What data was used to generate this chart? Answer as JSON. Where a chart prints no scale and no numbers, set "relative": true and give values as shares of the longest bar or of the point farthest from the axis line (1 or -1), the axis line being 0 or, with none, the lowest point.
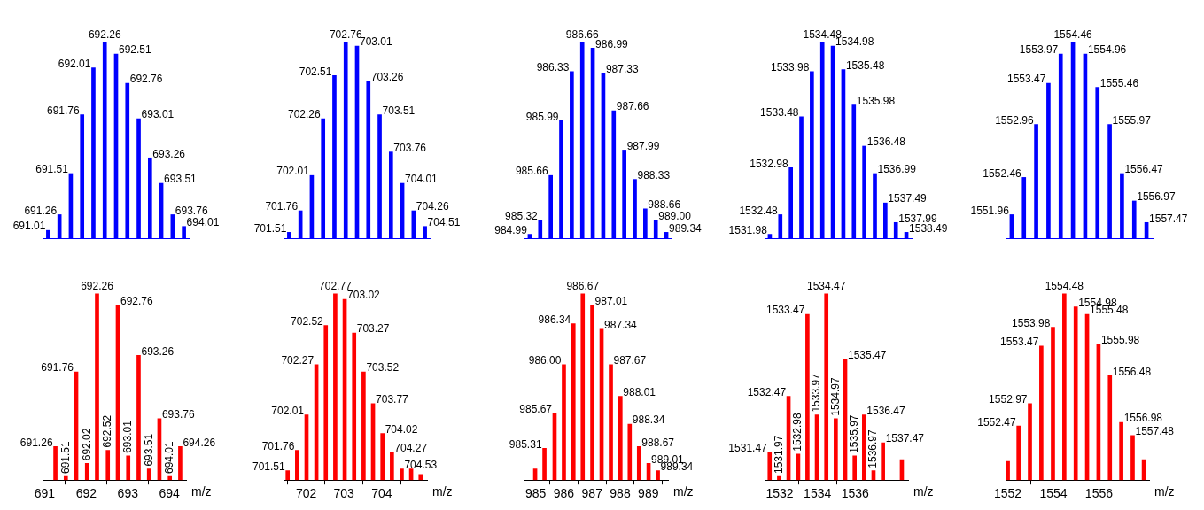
{
  "chart_data": [
    {
      "type": "bar",
      "relative": true,
      "color": "#0000ff",
      "tick_labels": false,
      "categories": [
        null,
        null,
        null,
        null,
        null,
        null,
        null,
        null,
        null,
        null,
        null,
        null,
        null
      ],
      "values": [
        0.04,
        0.12,
        0.33,
        0.63,
        0.87,
        1,
        0.94,
        0.79,
        0.61,
        0.41,
        0.28,
        0.12,
        0.06
      ],
      "annotations": [
        "691.01",
        "691.26",
        "691.51",
        "691.76",
        "692.01",
        "692.26",
        "692.51",
        "692.76",
        "693.01",
        "693.26",
        "693.51",
        "693.76",
        "694.01"
      ]
    },
    {
      "type": "bar",
      "relative": true,
      "color": "#0000ff",
      "tick_labels": false,
      "categories": [
        null,
        null,
        null,
        null,
        null,
        null,
        null,
        null,
        null,
        null,
        null,
        null,
        null
      ],
      "values": [
        0.03,
        0.14,
        0.32,
        0.61,
        0.83,
        1,
        0.98,
        0.8,
        0.63,
        0.44,
        0.28,
        0.14,
        0.06
      ],
      "annotations": [
        "701.51",
        "701.76",
        "702.01",
        "702.26",
        "702.51",
        "702.76",
        "703.01",
        "703.26",
        "703.51",
        "703.76",
        "704.01",
        "704.26",
        "704.51"
      ]
    },
    {
      "type": "bar",
      "relative": true,
      "color": "#0000ff",
      "tick_labels": false,
      "categories": [
        null,
        null,
        null,
        null,
        null,
        null,
        null,
        null,
        null,
        null,
        null,
        null,
        null,
        null
      ],
      "values": [
        0.02,
        0.09,
        0.32,
        0.6,
        0.85,
        1,
        0.97,
        0.84,
        0.65,
        0.45,
        0.3,
        0.15,
        0.09,
        0.03
      ],
      "annotations": [
        "984.99",
        "985.32",
        "985.66",
        "985.99",
        "986.33",
        "986.66",
        "986.99",
        "987.33",
        "987.66",
        "987.99",
        "988.33",
        "988.66",
        "989.00",
        "989.34"
      ]
    },
    {
      "type": "bar",
      "relative": true,
      "color": "#0000ff",
      "tick_labels": false,
      "categories": [
        null,
        null,
        null,
        null,
        null,
        null,
        null,
        null,
        null,
        null,
        null,
        null,
        null,
        null
      ],
      "values": [
        0.02,
        0.12,
        0.36,
        0.62,
        0.85,
        1,
        0.98,
        0.86,
        0.68,
        0.47,
        0.33,
        0.18,
        0.08,
        0.03
      ],
      "annotations": [
        "1531.98",
        "1532.48",
        "1532.98",
        "1533.48",
        "1533.98",
        "1534.48",
        "1534.98",
        "1535.48",
        "1535.98",
        "1536.48",
        "1536.99",
        "1537.49",
        "1537.99",
        "1538.49"
      ]
    },
    {
      "type": "bar",
      "relative": true,
      "color": "#0000ff",
      "tick_labels": false,
      "categories": [
        null,
        null,
        null,
        null,
        null,
        null,
        null,
        null,
        null,
        null,
        null,
        null
      ],
      "values": [
        0.12,
        0.31,
        0.58,
        0.79,
        0.94,
        1,
        0.94,
        0.77,
        0.58,
        0.33,
        0.19,
        0.08
      ],
      "annotations": [
        "1551.96",
        "1552.46",
        "1552.96",
        "1553.47",
        "1553.97",
        "1554.46",
        "1554.96",
        "1555.46",
        "1555.97",
        "1556.47",
        "1556.97",
        "1557.47"
      ]
    },
    {
      "type": "bar",
      "relative": true,
      "color": "#ff0000",
      "xlim": [
        690.95,
        694.4
      ],
      "xticks": [
        691,
        692,
        693,
        694
      ],
      "xlabel": "m/z",
      "tick_labels": "x",
      "x": [
        691.26,
        691.51,
        691.76,
        692.02,
        692.26,
        692.52,
        692.76,
        693.01,
        693.26,
        693.51,
        693.76,
        694.01,
        694.26
      ],
      "values": [
        0.18,
        0.02,
        0.58,
        0.09,
        1,
        0.16,
        0.94,
        0.13,
        0.67,
        0.06,
        0.33,
        0.02,
        0.18
      ],
      "annotations": [
        {
          "text": "691.26",
          "x": 691.26,
          "y": 0.18
        },
        {
          "text": "691.51",
          "x": 691.51,
          "y": 0.02
        },
        {
          "text": "691.76",
          "x": 691.76,
          "y": 0.58
        },
        {
          "text": "692.02",
          "x": 692.02,
          "y": 0.09
        },
        {
          "text": "692.26",
          "x": 692.26,
          "y": 1
        },
        {
          "text": "692.52",
          "x": 692.52,
          "y": 0.16
        },
        {
          "text": "692.76",
          "x": 692.76,
          "y": 0.94
        },
        {
          "text": "693.01",
          "x": 693.01,
          "y": 0.13
        },
        {
          "text": "693.26",
          "x": 693.26,
          "y": 0.67
        },
        {
          "text": "693.51",
          "x": 693.51,
          "y": 0.06
        },
        {
          "text": "693.76",
          "x": 693.76,
          "y": 0.33
        },
        {
          "text": "694.01",
          "x": 694.01,
          "y": 0.02
        },
        {
          "text": "694.26",
          "x": 694.26,
          "y": 0.18
        }
      ]
    },
    {
      "type": "bar",
      "relative": true,
      "color": "#ff0000",
      "xlim": [
        701.4,
        705.2
      ],
      "xticks": [
        702,
        703,
        704
      ],
      "xlabel": "m/z",
      "tick_labels": "x",
      "x": [
        701.51,
        701.76,
        702.01,
        702.27,
        702.52,
        702.77,
        703.02,
        703.27,
        703.52,
        703.77,
        704.02,
        704.27,
        704.53,
        704.78,
        705.03
      ],
      "values": [
        0.05,
        0.16,
        0.35,
        0.62,
        0.83,
        1,
        0.97,
        0.79,
        0.58,
        0.41,
        0.25,
        0.15,
        0.06,
        0.06,
        0.03
      ],
      "annotations": [
        {
          "text": "701.51",
          "x": 701.51,
          "y": 0.05
        },
        {
          "text": "701.76",
          "x": 701.76,
          "y": 0.16
        },
        {
          "text": "702.01",
          "x": 702.01,
          "y": 0.35
        },
        {
          "text": "702.27",
          "x": 702.27,
          "y": 0.62
        },
        {
          "text": "702.52",
          "x": 702.52,
          "y": 0.83
        },
        {
          "text": "702.77",
          "x": 702.77,
          "y": 1
        },
        {
          "text": "703.02",
          "x": 703.02,
          "y": 0.97
        },
        {
          "text": "703.27",
          "x": 703.27,
          "y": 0.79
        },
        {
          "text": "703.52",
          "x": 703.52,
          "y": 0.58
        },
        {
          "text": "703.77",
          "x": 703.77,
          "y": 0.41
        },
        {
          "text": "704.02",
          "x": 704.02,
          "y": 0.25
        },
        {
          "text": "704.27",
          "x": 704.27,
          "y": 0.15
        },
        {
          "text": "704.53",
          "x": 704.53,
          "y": 0.06
        }
      ]
    },
    {
      "type": "bar",
      "relative": true,
      "color": "#ff0000",
      "xlim": [
        984.6,
        989.7
      ],
      "xticks": [
        985,
        986,
        987,
        988,
        989
      ],
      "xlabel": "m/z",
      "tick_labels": "x",
      "x": [
        984.98,
        985.31,
        985.67,
        986.0,
        986.34,
        986.67,
        987.01,
        987.34,
        987.67,
        988.01,
        988.34,
        988.67,
        989.01,
        989.34
      ],
      "values": [
        0.06,
        0.17,
        0.36,
        0.62,
        0.84,
        1,
        0.94,
        0.81,
        0.62,
        0.45,
        0.3,
        0.18,
        0.09,
        0.05
      ],
      "annotations": [
        {
          "text": "985.31",
          "x": 985.31,
          "y": 0.17
        },
        {
          "text": "985.67",
          "x": 985.67,
          "y": 0.36
        },
        {
          "text": "986.00",
          "x": 986.0,
          "y": 0.62
        },
        {
          "text": "986.34",
          "x": 986.34,
          "y": 0.84
        },
        {
          "text": "986.67",
          "x": 986.67,
          "y": 1
        },
        {
          "text": "987.01",
          "x": 987.01,
          "y": 0.94
        },
        {
          "text": "987.34",
          "x": 987.34,
          "y": 0.81
        },
        {
          "text": "987.67",
          "x": 987.67,
          "y": 0.62
        },
        {
          "text": "988.01",
          "x": 988.01,
          "y": 0.45
        },
        {
          "text": "988.34",
          "x": 988.34,
          "y": 0.3
        },
        {
          "text": "988.67",
          "x": 988.67,
          "y": 0.18
        },
        {
          "text": "989.01",
          "x": 989.01,
          "y": 0.09
        },
        {
          "text": "989.34",
          "x": 989.34,
          "y": 0.05
        }
      ]
    },
    {
      "type": "bar",
      "relative": true,
      "color": "#ff0000",
      "xlim": [
        1531.2,
        1538.8
      ],
      "xticks": [
        1532,
        1534,
        1536
      ],
      "xlabel": "m/z",
      "tick_labels": "x",
      "x": [
        1531.47,
        1531.97,
        1532.47,
        1532.98,
        1533.47,
        1533.97,
        1534.47,
        1534.97,
        1535.47,
        1535.97,
        1536.47,
        1536.97,
        1537.47,
        1538.47
      ],
      "values": [
        0.15,
        0.02,
        0.45,
        0.14,
        0.89,
        0.35,
        1,
        0.33,
        0.65,
        0.13,
        0.35,
        0.05,
        0.2,
        0.11
      ],
      "annotations": [
        {
          "text": "1531.47",
          "x": 1531.47,
          "y": 0.15
        },
        {
          "text": "1531.97",
          "x": 1531.97,
          "y": 0.02
        },
        {
          "text": "1532.47",
          "x": 1532.47,
          "y": 0.45
        },
        {
          "text": "1532.98",
          "x": 1532.98,
          "y": 0.14
        },
        {
          "text": "1533.47",
          "x": 1533.47,
          "y": 0.89
        },
        {
          "text": "1533.97",
          "x": 1533.97,
          "y": 0.35
        },
        {
          "text": "1534.47",
          "x": 1534.47,
          "y": 1
        },
        {
          "text": "1534.97",
          "x": 1534.97,
          "y": 0.33
        },
        {
          "text": "1535.47",
          "x": 1535.47,
          "y": 0.65
        },
        {
          "text": "1535.97",
          "x": 1535.97,
          "y": 0.13
        },
        {
          "text": "1536.47",
          "x": 1536.47,
          "y": 0.35
        },
        {
          "text": "1536.97",
          "x": 1536.97,
          "y": 0.05
        },
        {
          "text": "1537.47",
          "x": 1537.47,
          "y": 0.2
        }
      ]
    },
    {
      "type": "bar",
      "relative": true,
      "color": "#ff0000",
      "xlim": [
        1551.9,
        1558.2
      ],
      "xticks": [
        1552,
        1554,
        1556
      ],
      "xlabel": "m/z",
      "tick_labels": "x",
      "x": [
        1552.0,
        1552.47,
        1552.97,
        1553.47,
        1553.98,
        1554.48,
        1554.98,
        1555.48,
        1555.98,
        1556.48,
        1556.98,
        1557.48,
        1557.97
      ],
      "values": [
        0.1,
        0.29,
        0.41,
        0.72,
        0.82,
        1,
        0.93,
        0.89,
        0.73,
        0.56,
        0.31,
        0.24,
        0.11
      ],
      "annotations": [
        {
          "text": "1552.47",
          "x": 1552.47,
          "y": 0.29
        },
        {
          "text": "1552.97",
          "x": 1552.97,
          "y": 0.41
        },
        {
          "text": "1553.47",
          "x": 1553.47,
          "y": 0.72
        },
        {
          "text": "1553.98",
          "x": 1553.98,
          "y": 0.82
        },
        {
          "text": "1554.48",
          "x": 1554.48,
          "y": 1
        },
        {
          "text": "1554.98",
          "x": 1554.98,
          "y": 0.93
        },
        {
          "text": "1555.48",
          "x": 1555.48,
          "y": 0.89
        },
        {
          "text": "1555.98",
          "x": 1555.98,
          "y": 0.73
        },
        {
          "text": "1556.48",
          "x": 1556.48,
          "y": 0.56
        },
        {
          "text": "1556.98",
          "x": 1556.98,
          "y": 0.31
        },
        {
          "text": "1557.48",
          "x": 1557.48,
          "y": 0.24
        }
      ]
    }
  ]
}
